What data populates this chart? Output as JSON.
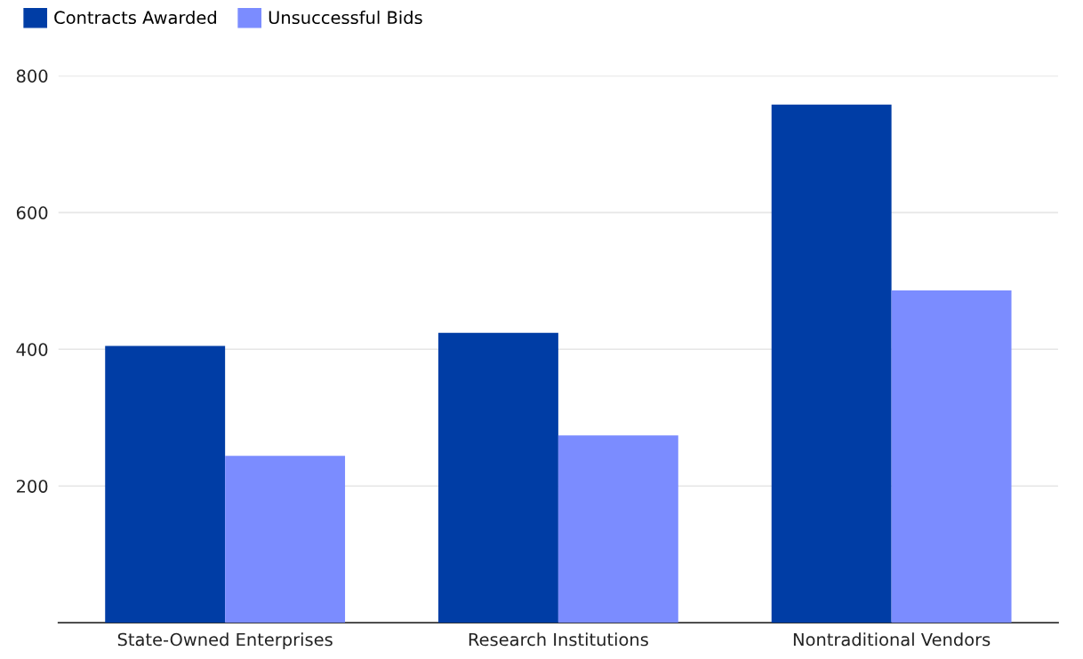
{
  "chart_data": {
    "type": "bar",
    "categories": [
      "State-Owned Enterprises",
      "Research Institutions",
      "Nontraditional Vendors"
    ],
    "series": [
      {
        "name": "Contracts Awarded",
        "color": "#003da5",
        "values": [
          405,
          424,
          758
        ]
      },
      {
        "name": "Unsuccessful Bids",
        "color": "#7b8cff",
        "values": [
          244,
          274,
          486
        ]
      }
    ],
    "ylim": [
      0,
      800
    ],
    "yticks": [
      200,
      400,
      600,
      800
    ],
    "grid": "y",
    "legend": "top left"
  }
}
